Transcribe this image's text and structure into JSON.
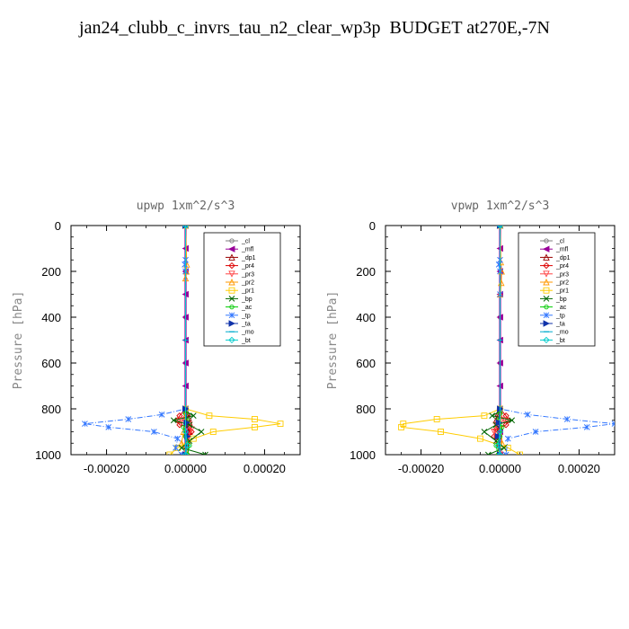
{
  "title": "jan24_clubb_c_invrs_tau_n2_clear_wp3p  BUDGET at270E,-7N",
  "chart_data": [
    {
      "type": "line",
      "title": "upwp   1xm^2/s^3",
      "ylabel": "Pressure [hPa]",
      "xlabel": "",
      "xlim": [
        -0.00029,
        0.00029
      ],
      "ylim": [
        1000,
        0
      ],
      "y_reversed": true,
      "xticks": [
        "-0.00020",
        "0.00000",
        "0.00020"
      ],
      "xtick_values": [
        -0.0002,
        0.0,
        0.0002
      ],
      "yticks": [
        "0",
        "200",
        "400",
        "600",
        "800",
        "1000"
      ],
      "ytick_values": [
        0,
        200,
        400,
        600,
        800,
        1000
      ],
      "legend_position": "top-right",
      "series": [
        {
          "name": "_cl",
          "color": "#7f7f7f",
          "marker": "circle",
          "dash": "solid",
          "x": [
            0,
            0,
            0,
            0,
            0,
            0
          ],
          "y": [
            0,
            200,
            400,
            600,
            800,
            1000
          ]
        },
        {
          "name": "_mfl",
          "color": "#990099",
          "marker": "triangle-left",
          "dash": "solid",
          "x": [
            0,
            0,
            0,
            0,
            0,
            0,
            0,
            0,
            0,
            0,
            0
          ],
          "y": [
            0,
            100,
            200,
            300,
            400,
            500,
            600,
            700,
            800,
            900,
            1000
          ]
        },
        {
          "name": "_dp1",
          "color": "#990000",
          "marker": "triangle-up",
          "dash": "solid",
          "x": [
            0,
            0,
            5e-06,
            8e-06,
            1e-05,
            5e-06,
            1e-05,
            5e-06
          ],
          "y": [
            0,
            800,
            820,
            840,
            860,
            880,
            900,
            1000
          ]
        },
        {
          "name": "_pr4",
          "color": "#dd0000",
          "marker": "diamond",
          "dash": "solid",
          "x": [
            0,
            0,
            -1.5e-05,
            -2e-05,
            -1.5e-05,
            1e-05,
            1.5e-05,
            5e-06,
            0
          ],
          "y": [
            0,
            800,
            830,
            850,
            870,
            880,
            900,
            950,
            1000
          ]
        },
        {
          "name": "_pr3",
          "color": "#ff4444",
          "marker": "triangle-down",
          "dash": "solid",
          "x": [
            0,
            0,
            -1e-05,
            1e-05,
            1.5e-05,
            5e-06,
            0
          ],
          "y": [
            0,
            820,
            850,
            870,
            890,
            930,
            1000
          ]
        },
        {
          "name": "_pr2",
          "color": "#ff9900",
          "marker": "triangle-up",
          "dash": "solid",
          "x": [
            0,
            3e-06,
            2e-06,
            0,
            0,
            -5e-06,
            -1e-05,
            5e-06
          ],
          "y": [
            0,
            170,
            200,
            230,
            800,
            900,
            950,
            1000
          ]
        },
        {
          "name": "_pr1",
          "color": "#ffcc00",
          "marker": "square",
          "dash": "solid",
          "x": [
            0,
            0,
            6e-05,
            0.000175,
            0.00024,
            0.000175,
            7e-05,
            2e-05,
            -2e-05,
            -4e-05
          ],
          "y": [
            0,
            800,
            830,
            845,
            865,
            880,
            900,
            930,
            970,
            1000
          ]
        },
        {
          "name": "_bp",
          "color": "#006600",
          "marker": "x",
          "dash": "solid",
          "x": [
            0,
            0,
            2e-05,
            -3e-05,
            1e-05,
            4e-05,
            1e-05,
            -1e-05,
            5e-05
          ],
          "y": [
            0,
            810,
            830,
            850,
            870,
            900,
            940,
            970,
            1000
          ]
        },
        {
          "name": "_ac",
          "color": "#00cc00",
          "marker": "circle",
          "dash": "solid",
          "x": [
            0,
            0,
            5e-06,
            -5e-06,
            0,
            1e-05,
            5e-06
          ],
          "y": [
            0,
            820,
            850,
            880,
            920,
            960,
            1000
          ]
        },
        {
          "name": "_tp",
          "color": "#3377ff",
          "marker": "asterisk",
          "dash": "dashdot",
          "x": [
            0,
            0,
            -2e-06,
            0,
            0,
            -6e-05,
            -0.000145,
            -0.000255,
            -0.000195,
            -8e-05,
            -2e-05,
            -2.5e-05,
            -1e-05
          ],
          "y": [
            0,
            150,
            170,
            200,
            800,
            825,
            845,
            865,
            880,
            900,
            930,
            970,
            1000
          ]
        },
        {
          "name": "_ta",
          "color": "#1133aa",
          "marker": "triangle-right",
          "dash": "dashdot",
          "x": [
            0,
            0,
            3e-06,
            5e-06,
            0
          ],
          "y": [
            0,
            800,
            860,
            920,
            1000
          ]
        },
        {
          "name": "_mo",
          "color": "#00aacc",
          "marker": "dash",
          "dash": "solid",
          "x": [
            0,
            0,
            0
          ],
          "y": [
            0,
            500,
            1000
          ]
        },
        {
          "name": "_bt",
          "color": "#00cccc",
          "marker": "diamond",
          "dash": "solid",
          "x": [
            0,
            0,
            5e-06,
            0
          ],
          "y": [
            0,
            900,
            960,
            1000
          ]
        }
      ]
    },
    {
      "type": "line",
      "title": "vpwp   1xm^2/s^3",
      "ylabel": "Pressure [hPa]",
      "xlabel": "",
      "xlim": [
        -0.00029,
        0.00029
      ],
      "ylim": [
        1000,
        0
      ],
      "y_reversed": true,
      "xticks": [
        "-0.00020",
        "0.00000",
        "0.00020"
      ],
      "xtick_values": [
        -0.0002,
        0.0,
        0.0002
      ],
      "yticks": [
        "0",
        "200",
        "400",
        "600",
        "800",
        "1000"
      ],
      "ytick_values": [
        0,
        200,
        400,
        600,
        800,
        1000
      ],
      "legend_position": "top-right",
      "series": [
        {
          "name": "_cl",
          "color": "#7f7f7f",
          "marker": "circle",
          "dash": "solid",
          "x": [
            0,
            0,
            0,
            0,
            0,
            0
          ],
          "y": [
            0,
            200,
            400,
            600,
            800,
            1000
          ]
        },
        {
          "name": "_mfl",
          "color": "#990099",
          "marker": "triangle-left",
          "dash": "solid",
          "x": [
            0,
            0,
            0,
            0,
            0,
            0,
            0,
            0,
            0,
            0,
            0
          ],
          "y": [
            0,
            100,
            200,
            300,
            400,
            500,
            600,
            700,
            800,
            900,
            1000
          ]
        },
        {
          "name": "_dp1",
          "color": "#990000",
          "marker": "triangle-up",
          "dash": "solid",
          "x": [
            0,
            0,
            -5e-06,
            -1e-05,
            -8e-06,
            -5e-06,
            0
          ],
          "y": [
            0,
            800,
            820,
            850,
            880,
            920,
            1000
          ]
        },
        {
          "name": "_pr4",
          "color": "#dd0000",
          "marker": "diamond",
          "dash": "solid",
          "x": [
            0,
            0,
            1.5e-05,
            2e-05,
            1.5e-05,
            -1e-05,
            -1.5e-05,
            0
          ],
          "y": [
            0,
            800,
            830,
            850,
            870,
            890,
            920,
            1000
          ]
        },
        {
          "name": "_pr3",
          "color": "#ff4444",
          "marker": "triangle-down",
          "dash": "solid",
          "x": [
            0,
            0,
            1e-05,
            -1e-05,
            -1.5e-05,
            0
          ],
          "y": [
            0,
            820,
            850,
            870,
            900,
            1000
          ]
        },
        {
          "name": "_pr2",
          "color": "#ff9900",
          "marker": "triangle-up",
          "dash": "solid",
          "x": [
            0,
            2e-06,
            4e-06,
            3e-06,
            0,
            0,
            5e-06,
            -5e-06
          ],
          "y": [
            0,
            160,
            200,
            250,
            300,
            800,
            950,
            1000
          ]
        },
        {
          "name": "_pr1",
          "color": "#ffcc00",
          "marker": "square",
          "dash": "solid",
          "x": [
            0,
            0,
            -4e-05,
            -0.00016,
            -0.000245,
            -0.00025,
            -0.00015,
            -5e-05,
            2e-05,
            5e-05
          ],
          "y": [
            0,
            800,
            830,
            845,
            865,
            880,
            900,
            930,
            970,
            1000
          ]
        },
        {
          "name": "_bp",
          "color": "#006600",
          "marker": "x",
          "dash": "solid",
          "x": [
            0,
            0,
            -2e-05,
            3e-05,
            -1e-05,
            -4e-05,
            -1e-05,
            1e-05,
            -3e-05
          ],
          "y": [
            0,
            810,
            830,
            850,
            870,
            900,
            940,
            970,
            1000
          ]
        },
        {
          "name": "_ac",
          "color": "#00cc00",
          "marker": "circle",
          "dash": "solid",
          "x": [
            0,
            0,
            -5e-06,
            5e-06,
            0,
            -1e-05,
            -5e-06
          ],
          "y": [
            0,
            820,
            850,
            880,
            920,
            960,
            1000
          ]
        },
        {
          "name": "_tp",
          "color": "#3377ff",
          "marker": "asterisk",
          "dash": "dashdot",
          "x": [
            0,
            0,
            -3e-06,
            0,
            0,
            0,
            7e-05,
            0.00017,
            0.00029,
            0.00022,
            9e-05,
            2e-05,
            1.5e-05
          ],
          "y": [
            0,
            150,
            170,
            200,
            300,
            800,
            825,
            845,
            865,
            880,
            900,
            930,
            1000
          ]
        },
        {
          "name": "_ta",
          "color": "#1133aa",
          "marker": "triangle-right",
          "dash": "dashdot",
          "x": [
            0,
            0,
            -3e-06,
            -5e-06,
            0
          ],
          "y": [
            0,
            800,
            860,
            920,
            1000
          ]
        },
        {
          "name": "_mo",
          "color": "#00aacc",
          "marker": "dash",
          "dash": "solid",
          "x": [
            0,
            0,
            0
          ],
          "y": [
            0,
            500,
            1000
          ]
        },
        {
          "name": "_bt",
          "color": "#00cccc",
          "marker": "diamond",
          "dash": "solid",
          "x": [
            0,
            0,
            -5e-06,
            0
          ],
          "y": [
            0,
            900,
            960,
            1000
          ]
        }
      ]
    }
  ]
}
